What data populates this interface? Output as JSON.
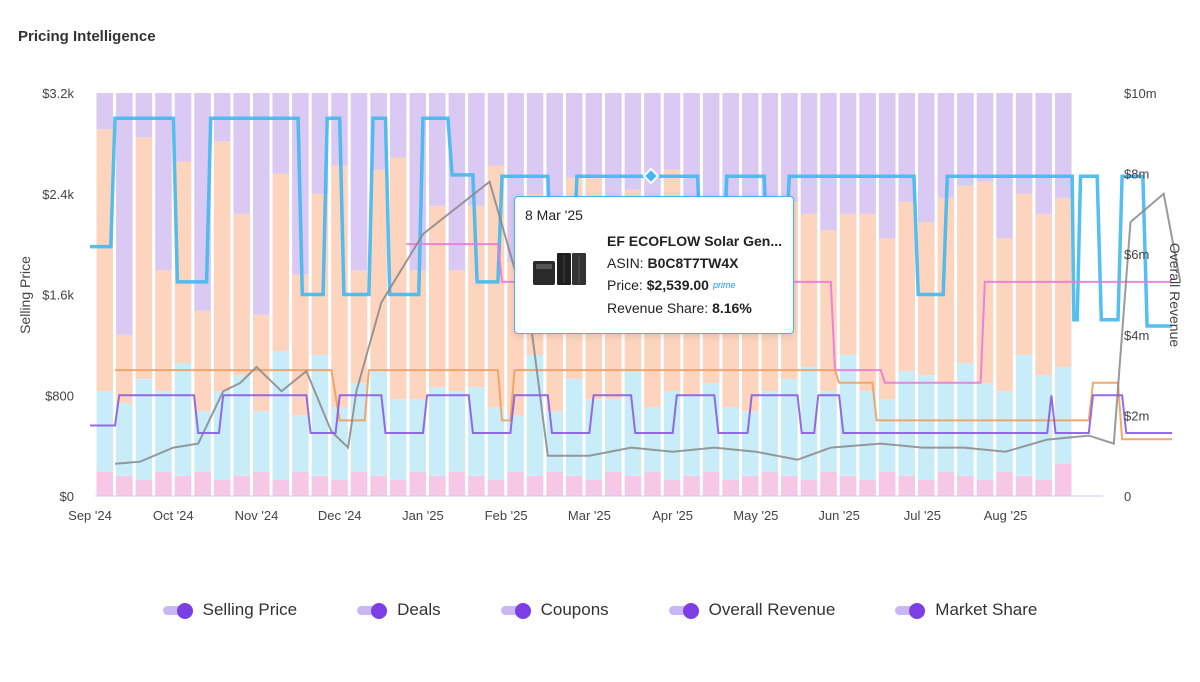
{
  "title": "Pricing Intelligence",
  "chart_data": {
    "type": "bar",
    "x_ticks": [
      "Sep '24",
      "Oct '24",
      "Nov '24",
      "Dec '24",
      "Jan '25",
      "Feb '25",
      "Mar '25",
      "Apr '25",
      "May '25",
      "Jun '25",
      "Jul '25",
      "Aug '25"
    ],
    "ylabel_left": "Selling Price",
    "ylabel_right": "Overall Revenue",
    "yticks_left": [
      "$0",
      "$800",
      "$1.6k",
      "$2.4k",
      "$3.2k"
    ],
    "yticks_right": [
      "0",
      "$2m",
      "$4m",
      "$6m",
      "$8m",
      "$10m"
    ],
    "ylim_left": [
      0,
      3200
    ],
    "ylim_right": [
      0,
      10000000
    ],
    "market_share_stack_percent": [
      [
        6,
        20,
        65,
        9
      ],
      [
        5,
        18,
        17,
        60
      ],
      [
        4,
        25,
        60,
        11
      ],
      [
        6,
        20,
        30,
        44
      ],
      [
        5,
        28,
        50,
        17
      ],
      [
        6,
        15,
        25,
        54
      ],
      [
        4,
        22,
        62,
        12
      ],
      [
        5,
        25,
        40,
        30
      ],
      [
        6,
        15,
        24,
        55
      ],
      [
        4,
        32,
        44,
        20
      ],
      [
        6,
        14,
        35,
        45
      ],
      [
        5,
        30,
        40,
        25
      ],
      [
        4,
        18,
        60,
        18
      ],
      [
        6,
        22,
        28,
        44
      ],
      [
        5,
        26,
        50,
        19
      ],
      [
        4,
        20,
        60,
        16
      ],
      [
        6,
        18,
        32,
        44
      ],
      [
        5,
        22,
        45,
        28
      ],
      [
        6,
        20,
        30,
        44
      ],
      [
        5,
        22,
        45,
        28
      ],
      [
        4,
        18,
        60,
        18
      ],
      [
        6,
        14,
        38,
        42
      ],
      [
        5,
        30,
        40,
        25
      ],
      [
        6,
        15,
        34,
        45
      ],
      [
        5,
        24,
        50,
        21
      ],
      [
        4,
        20,
        55,
        21
      ],
      [
        6,
        18,
        32,
        44
      ],
      [
        5,
        26,
        45,
        24
      ],
      [
        6,
        16,
        34,
        44
      ],
      [
        4,
        22,
        55,
        19
      ],
      [
        5,
        20,
        40,
        35
      ],
      [
        6,
        22,
        44,
        28
      ],
      [
        4,
        18,
        46,
        32
      ],
      [
        5,
        16,
        38,
        41
      ],
      [
        6,
        20,
        46,
        28
      ],
      [
        5,
        24,
        44,
        27
      ],
      [
        4,
        28,
        38,
        30
      ],
      [
        6,
        20,
        40,
        34
      ],
      [
        5,
        30,
        35,
        30
      ],
      [
        4,
        22,
        44,
        30
      ],
      [
        6,
        18,
        40,
        36
      ],
      [
        5,
        26,
        42,
        27
      ],
      [
        4,
        26,
        38,
        32
      ],
      [
        6,
        22,
        46,
        26
      ],
      [
        5,
        28,
        44,
        23
      ],
      [
        4,
        24,
        50,
        22
      ],
      [
        6,
        20,
        38,
        36
      ],
      [
        5,
        30,
        40,
        25
      ],
      [
        4,
        26,
        40,
        30
      ],
      [
        8,
        24,
        42,
        26
      ]
    ],
    "series": [
      {
        "name": "Selling Price",
        "color": "#41b8ee",
        "values": [
          [
            0,
            1980
          ],
          [
            0.25,
            1980
          ],
          [
            0.3,
            3000
          ],
          [
            1.0,
            3000
          ],
          [
            1.05,
            1700
          ],
          [
            1.4,
            1700
          ],
          [
            1.45,
            3000
          ],
          [
            2.5,
            3000
          ],
          [
            2.55,
            1600
          ],
          [
            2.8,
            1600
          ],
          [
            2.85,
            3000
          ],
          [
            3.0,
            3000
          ],
          [
            3.05,
            1600
          ],
          [
            3.35,
            1600
          ],
          [
            3.4,
            3000
          ],
          [
            3.55,
            3000
          ],
          [
            3.6,
            1600
          ],
          [
            3.95,
            1600
          ],
          [
            4.0,
            3000
          ],
          [
            4.3,
            3000
          ],
          [
            4.35,
            2550
          ],
          [
            4.6,
            2550
          ],
          [
            4.65,
            1700
          ],
          [
            4.9,
            1700
          ],
          [
            4.95,
            2539
          ],
          [
            5.5,
            2539
          ],
          [
            5.55,
            1700
          ],
          [
            5.8,
            1700
          ],
          [
            5.85,
            2539
          ],
          [
            7.3,
            2539
          ],
          [
            7.35,
            1700
          ],
          [
            7.6,
            1700
          ],
          [
            7.65,
            2539
          ],
          [
            8.1,
            2539
          ],
          [
            8.15,
            1700
          ],
          [
            8.35,
            1700
          ],
          [
            8.4,
            2539
          ],
          [
            9.05,
            2539
          ],
          [
            9.1,
            2539
          ],
          [
            9.9,
            2539
          ],
          [
            9.95,
            1600
          ],
          [
            10.25,
            1600
          ],
          [
            10.3,
            2539
          ],
          [
            11.4,
            2539
          ],
          [
            11.45,
            2539
          ],
          [
            11.8,
            2539
          ],
          [
            11.82,
            1400
          ],
          [
            11.86,
            1400
          ],
          [
            11.9,
            2539
          ],
          [
            12.1,
            2539
          ],
          [
            12.15,
            1400
          ],
          [
            12.35,
            1400
          ],
          [
            12.4,
            2539
          ],
          [
            12.65,
            2539
          ],
          [
            12.7,
            1350
          ],
          [
            13.0,
            1350
          ]
        ]
      },
      {
        "name": "Deals",
        "color": "#e87bd6",
        "values": [
          [
            3.8,
            2000
          ],
          [
            4.9,
            2000
          ],
          [
            4.95,
            1700
          ],
          [
            6.3,
            1700
          ],
          [
            6.35,
            1400
          ],
          [
            6.9,
            1400
          ],
          [
            6.95,
            1400
          ],
          [
            7.6,
            1400
          ],
          [
            7.65,
            1700
          ],
          [
            8.9,
            1700
          ],
          [
            8.95,
            1000
          ],
          [
            9.5,
            1000
          ],
          [
            9.55,
            900
          ],
          [
            10.7,
            900
          ],
          [
            10.75,
            1700
          ],
          [
            13.0,
            1700
          ]
        ]
      },
      {
        "name": "Coupons",
        "color": "#f0a05e",
        "values": [
          [
            0.3,
            1000
          ],
          [
            2.9,
            1000
          ],
          [
            3.0,
            600
          ],
          [
            3.3,
            600
          ],
          [
            3.35,
            1000
          ],
          [
            4.9,
            1000
          ],
          [
            4.95,
            600
          ],
          [
            5.05,
            600
          ],
          [
            5.1,
            1000
          ],
          [
            8.95,
            1000
          ],
          [
            9.0,
            900
          ],
          [
            9.4,
            900
          ],
          [
            9.45,
            600
          ],
          [
            12.0,
            600
          ],
          [
            12.05,
            900
          ],
          [
            12.35,
            900
          ],
          [
            12.4,
            450
          ],
          [
            13.0,
            450
          ]
        ]
      },
      {
        "name": "Overall Revenue",
        "color": "#888888",
        "values": [
          [
            0.3,
            0.8
          ],
          [
            0.6,
            0.85
          ],
          [
            1.0,
            1.2
          ],
          [
            1.3,
            1.3
          ],
          [
            1.6,
            2.6
          ],
          [
            1.8,
            2.8
          ],
          [
            2.0,
            3.2
          ],
          [
            2.3,
            2.6
          ],
          [
            2.6,
            3.1
          ],
          [
            2.9,
            1.6
          ],
          [
            3.1,
            1.2
          ],
          [
            3.2,
            2.6
          ],
          [
            3.5,
            4.8
          ],
          [
            4.0,
            6.5
          ],
          [
            4.8,
            7.8
          ],
          [
            5.3,
            4.2
          ],
          [
            5.5,
            1.0
          ],
          [
            6.0,
            1.0
          ],
          [
            6.5,
            1.2
          ],
          [
            7.0,
            1.1
          ],
          [
            7.5,
            1.2
          ],
          [
            8.0,
            1.1
          ],
          [
            8.5,
            0.9
          ],
          [
            8.9,
            1.2
          ],
          [
            9.5,
            1.3
          ],
          [
            10.0,
            1.2
          ],
          [
            10.5,
            1.2
          ],
          [
            11.0,
            1.1
          ],
          [
            11.5,
            1.4
          ],
          [
            12.0,
            1.5
          ],
          [
            12.3,
            1.3
          ],
          [
            12.5,
            6.8
          ],
          [
            12.9,
            7.5
          ],
          [
            13.1,
            5.3
          ]
        ]
      },
      {
        "name": "Market Share",
        "color": "#8a5ce0",
        "values": [
          [
            0,
            560
          ],
          [
            0.3,
            560
          ],
          [
            0.35,
            800
          ],
          [
            1.25,
            800
          ],
          [
            1.3,
            500
          ],
          [
            1.55,
            500
          ],
          [
            1.6,
            800
          ],
          [
            2.6,
            800
          ],
          [
            2.65,
            500
          ],
          [
            2.95,
            500
          ],
          [
            3.0,
            800
          ],
          [
            3.5,
            800
          ],
          [
            3.55,
            500
          ],
          [
            4.0,
            500
          ],
          [
            4.05,
            800
          ],
          [
            4.55,
            800
          ],
          [
            4.6,
            500
          ],
          [
            5.05,
            500
          ],
          [
            5.1,
            800
          ],
          [
            5.5,
            800
          ],
          [
            5.55,
            500
          ],
          [
            6.0,
            500
          ],
          [
            6.05,
            800
          ],
          [
            6.5,
            800
          ],
          [
            6.55,
            500
          ],
          [
            7.0,
            500
          ],
          [
            7.05,
            800
          ],
          [
            7.5,
            800
          ],
          [
            7.55,
            500
          ],
          [
            7.9,
            500
          ],
          [
            7.95,
            800
          ],
          [
            8.5,
            800
          ],
          [
            8.55,
            500
          ],
          [
            8.7,
            500
          ],
          [
            8.75,
            800
          ],
          [
            9.0,
            800
          ],
          [
            9.05,
            500
          ],
          [
            11.5,
            500
          ],
          [
            11.55,
            800
          ],
          [
            11.6,
            500
          ],
          [
            12.0,
            500
          ],
          [
            12.05,
            800
          ],
          [
            12.4,
            800
          ],
          [
            12.45,
            500
          ],
          [
            13.0,
            500
          ]
        ]
      }
    ]
  },
  "tooltip": {
    "date": "8 Mar '25",
    "product": "EF ECOFLOW Solar Gen...",
    "asin_label": "ASIN:",
    "asin": "B0C8T7TW4X",
    "price_label": "Price:",
    "price": "$2,539.00",
    "prime": "prime",
    "share_label": "Revenue Share:",
    "share": "8.16%"
  },
  "legend": [
    "Selling Price",
    "Deals",
    "Coupons",
    "Overall Revenue",
    "Market Share"
  ]
}
